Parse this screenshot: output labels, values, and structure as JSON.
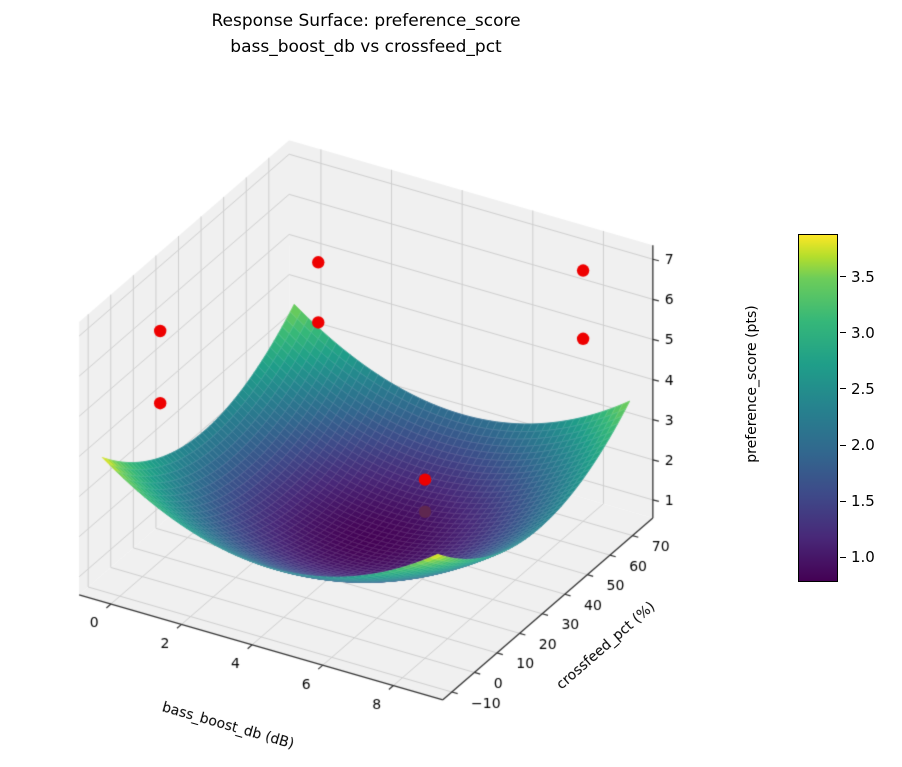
{
  "figure": {
    "title_line1": "Response Surface: preference_score",
    "title_line2": "bass_boost_db vs crossfeed_pct"
  },
  "chart_data": {
    "type": "surface3d",
    "title": "Response Surface: preference_score — bass_boost_db vs crossfeed_pct",
    "xlabel": "bass_boost_db (dB)",
    "ylabel": "crossfeed_pct (%)",
    "zlabel": "preference_score (pts)",
    "xlim": [
      -0.9,
      9.4
    ],
    "ylim": [
      -14,
      79
    ],
    "zlim": [
      0.55,
      7.35
    ],
    "x_ticks": [
      0,
      2,
      4,
      6,
      8
    ],
    "y_ticks": [
      -10,
      0,
      10,
      20,
      30,
      40,
      50,
      60,
      70
    ],
    "z_ticks": [
      1,
      2,
      3,
      4,
      5,
      6,
      7
    ],
    "surface": {
      "model": "quadratic-bowl",
      "x_domain": [
        -0.5,
        9.0
      ],
      "y_domain": [
        -10,
        75
      ],
      "center": [
        4.25,
        35
      ],
      "z_min": 0.8,
      "coef_x2": 0.0683,
      "coef_y2": 0.00076,
      "grid_n": 48
    },
    "color_range": [
      0.78,
      3.88
    ],
    "colorbar_ticks": [
      1.0,
      1.5,
      2.0,
      2.5,
      3.0,
      3.5
    ],
    "colormap": "viridis",
    "colormap_stops": [
      [
        0.0,
        68,
        1,
        84
      ],
      [
        0.125,
        72,
        40,
        120
      ],
      [
        0.25,
        62,
        74,
        137
      ],
      [
        0.375,
        49,
        104,
        142
      ],
      [
        0.5,
        38,
        130,
        142
      ],
      [
        0.625,
        31,
        158,
        137
      ],
      [
        0.75,
        53,
        183,
        121
      ],
      [
        0.875,
        109,
        205,
        89
      ],
      [
        0.9375,
        180,
        222,
        44
      ],
      [
        1.0,
        253,
        231,
        37
      ]
    ],
    "points": [
      {
        "bass_boost_db": 0.5,
        "crossfeed_pct": 0,
        "preference_score": 6.8
      },
      {
        "bass_boost_db": 0.5,
        "crossfeed_pct": 0,
        "preference_score": 5.0
      },
      {
        "bass_boost_db": 0.5,
        "crossfeed_pct": 70,
        "preference_score": 5.1
      },
      {
        "bass_boost_db": 0.5,
        "crossfeed_pct": 70,
        "preference_score": 3.6
      },
      {
        "bass_boost_db": 8,
        "crossfeed_pct": 70,
        "preference_score": 6.8
      },
      {
        "bass_boost_db": 8,
        "crossfeed_pct": 70,
        "preference_score": 5.1
      },
      {
        "bass_boost_db": 8,
        "crossfeed_pct": 0,
        "preference_score": 5.0
      },
      {
        "bass_boost_db": 8,
        "crossfeed_pct": 0,
        "preference_score": 4.2,
        "occluded": true
      }
    ],
    "point_color": "#ee0000",
    "occluded_point_color": "#5e2750",
    "style": {
      "pane_color": "#f0f0f0",
      "grid_color": "#cfcfcf",
      "spine_color": "#333333",
      "tick_label_color": "#000000",
      "mesh_line_color": "rgba(255,255,255,0.22)"
    }
  }
}
